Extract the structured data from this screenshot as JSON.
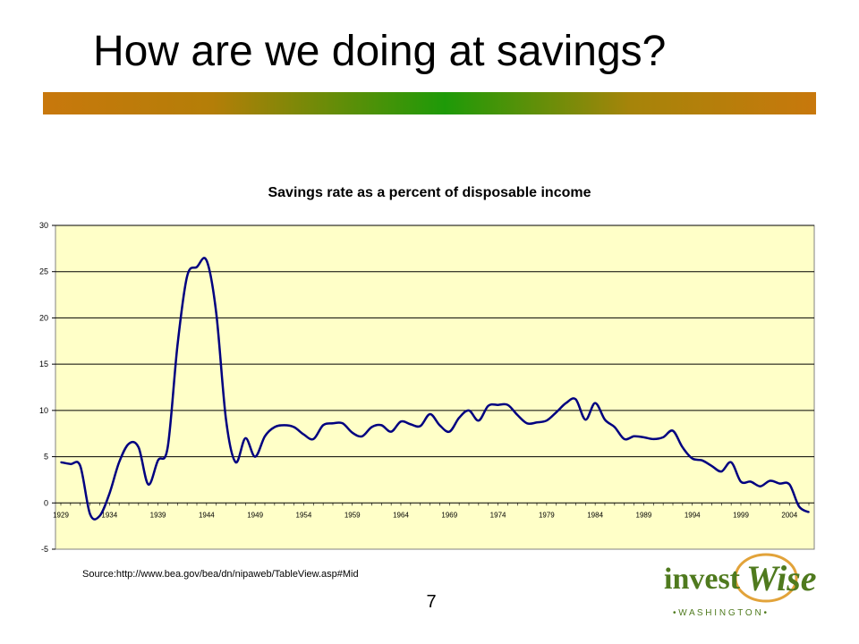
{
  "slide": {
    "title": "How are we doing at savings?",
    "page_number": "7",
    "source_note": "Source:http://www.bea.gov/bea/dn/nipaweb/TableView.asp#Mid",
    "logo": {
      "text_invest": "invest",
      "text_wise": "Wise",
      "text_sub": "• W A S H I N G T O N •"
    }
  },
  "colors": {
    "plot_background": "#FFFFC8",
    "line": "#000080",
    "gridline": "#000000",
    "title_bar_gradient": [
      "#c8780c",
      "#1e9a08",
      "#c8780c"
    ],
    "logo_green": "#4f7a1e",
    "logo_orange": "#e2a33a"
  },
  "chart_data": {
    "type": "line",
    "title": "Savings rate as a percent of disposable income",
    "xlabel": "",
    "ylabel": "",
    "ylim": [
      -5,
      30
    ],
    "yticks": [
      -5,
      0,
      5,
      10,
      15,
      20,
      25,
      30
    ],
    "xlim": [
      1929,
      2006
    ],
    "xticks": [
      1929,
      1934,
      1939,
      1944,
      1949,
      1954,
      1959,
      1964,
      1969,
      1974,
      1979,
      1984,
      1989,
      1994,
      1999,
      2004
    ],
    "grid": "horizontal",
    "legend": "none",
    "series": [
      {
        "x": [
          1929,
          1930,
          1931,
          1932,
          1933,
          1934,
          1935,
          1936,
          1937,
          1938,
          1939,
          1940,
          1941,
          1942,
          1943,
          1944,
          1945,
          1946,
          1947,
          1948,
          1949,
          1950,
          1951,
          1952,
          1953,
          1954,
          1955,
          1956,
          1957,
          1958,
          1959,
          1960,
          1961,
          1962,
          1963,
          1964,
          1965,
          1966,
          1967,
          1968,
          1969,
          1970,
          1971,
          1972,
          1973,
          1974,
          1975,
          1976,
          1977,
          1978,
          1979,
          1980,
          1981,
          1982,
          1983,
          1984,
          1985,
          1986,
          1987,
          1988,
          1989,
          1990,
          1991,
          1992,
          1993,
          1994,
          1995,
          1996,
          1997,
          1998,
          1999,
          2000,
          2001,
          2002,
          2003,
          2004,
          2005,
          2006
        ],
        "values": [
          4.4,
          4.2,
          4.0,
          -1.2,
          -1.4,
          1.0,
          4.4,
          6.4,
          6.0,
          2.0,
          4.6,
          6.0,
          17.0,
          24.5,
          25.5,
          26.2,
          20.5,
          9.0,
          4.4,
          7.0,
          5.0,
          7.2,
          8.2,
          8.4,
          8.2,
          7.4,
          6.9,
          8.4,
          8.6,
          8.6,
          7.6,
          7.2,
          8.2,
          8.4,
          7.7,
          8.8,
          8.5,
          8.3,
          9.6,
          8.4,
          7.7,
          9.2,
          10.0,
          8.9,
          10.5,
          10.6,
          10.6,
          9.5,
          8.6,
          8.7,
          8.9,
          9.8,
          10.8,
          11.2,
          9.0,
          10.8,
          9.0,
          8.2,
          6.9,
          7.2,
          7.1,
          6.9,
          7.1,
          7.8,
          6.0,
          4.8,
          4.6,
          4.0,
          3.4,
          4.4,
          2.3,
          2.3,
          1.8,
          2.4,
          2.1,
          2.0,
          -0.4,
          -1.0
        ]
      }
    ]
  }
}
